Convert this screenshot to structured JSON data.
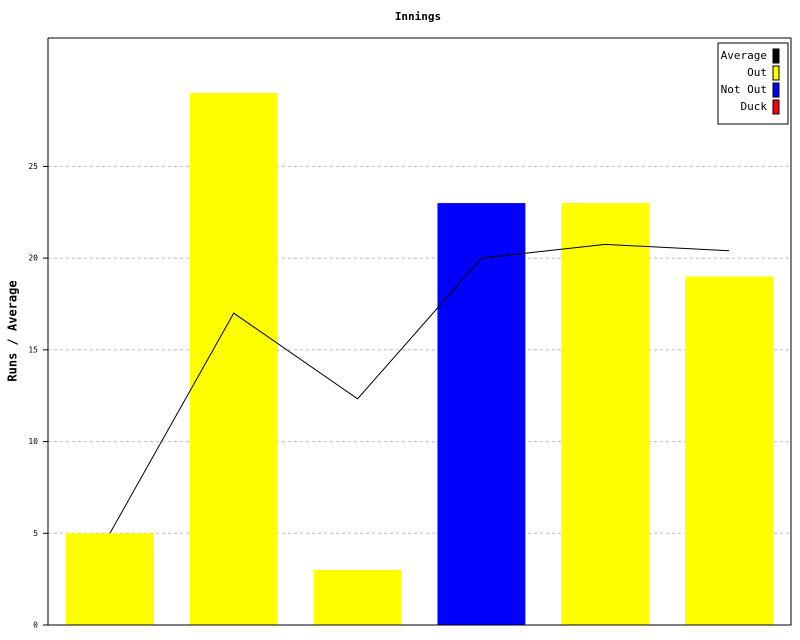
{
  "chart_data": {
    "type": "bar",
    "title": "Innings",
    "ylabel": "Runs / Average",
    "categories": [
      null,
      null,
      null,
      null,
      null,
      null
    ],
    "series": [
      {
        "name": "Average",
        "color": "#000000",
        "type": "line",
        "values": [
          5,
          17,
          12.33,
          20,
          20.75,
          20.4
        ]
      },
      {
        "name": "Out",
        "color": "#ffff00",
        "values": [
          5,
          29,
          3,
          null,
          23,
          19
        ]
      },
      {
        "name": "Not Out",
        "color": "#0000ff",
        "values": [
          null,
          null,
          null,
          23,
          null,
          null
        ]
      },
      {
        "name": "Duck",
        "color": "#ff0000",
        "values": [
          null,
          null,
          null,
          null,
          null,
          null
        ]
      }
    ],
    "ylim": [
      0,
      32
    ],
    "yticks": [
      0,
      5,
      10,
      15,
      20,
      25
    ],
    "grid": true,
    "legend": "upper right"
  }
}
